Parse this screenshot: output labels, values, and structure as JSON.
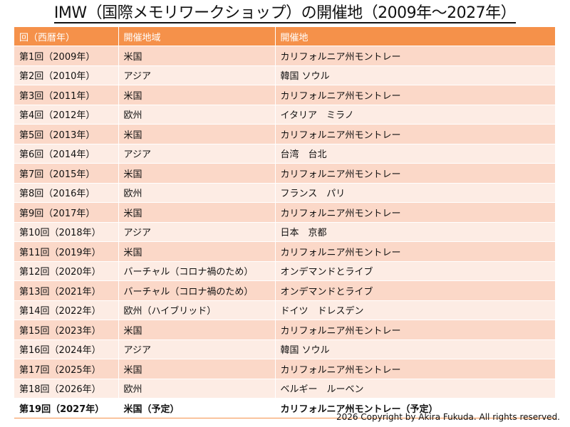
{
  "title": "IMW（国際メモリワークショップ）の開催地（2009年～2027年）",
  "table": {
    "headers": [
      "回（西暦年）",
      "開催地域",
      "開催地"
    ],
    "rows": [
      [
        "第1回（2009年）",
        "米国",
        "カリフォルニア州モントレー"
      ],
      [
        "第2回（2010年）",
        "アジア",
        "韓国 ソウル"
      ],
      [
        "第3回（2011年）",
        "米国",
        "カリフォルニア州モントレー"
      ],
      [
        "第4回（2012年）",
        "欧州",
        "イタリア　ミラノ"
      ],
      [
        "第5回（2013年）",
        "米国",
        "カリフォルニア州モントレー"
      ],
      [
        "第6回（2014年）",
        "アジア",
        "台湾　台北"
      ],
      [
        "第7回（2015年）",
        "米国",
        "カリフォルニア州モントレー"
      ],
      [
        "第8回（2016年）",
        "欧州",
        "フランス　パリ"
      ],
      [
        "第9回（2017年）",
        "米国",
        "カリフォルニア州モントレー"
      ],
      [
        "第10回（2018年）",
        "アジア",
        "日本　京都"
      ],
      [
        "第11回（2019年）",
        "米国",
        "カリフォルニア州モントレー"
      ],
      [
        "第12回（2020年）",
        "バーチャル（コロナ禍のため）",
        "オンデマンドとライブ"
      ],
      [
        "第13回（2021年）",
        "バーチャル（コロナ禍のため）",
        "オンデマンドとライブ"
      ],
      [
        "第14回（2022年）",
        "欧州（ハイブリッド）",
        "ドイツ　ドレスデン"
      ],
      [
        "第15回（2023年）",
        "米国",
        "カリフォルニア州モントレー"
      ],
      [
        "第16回（2024年）",
        "アジア",
        "韓国 ソウル"
      ],
      [
        "第17回（2025年）",
        "米国",
        "カリフォルニア州モントレー"
      ],
      [
        "第18回（2026年）",
        "欧州",
        "ベルギー　ルーベン"
      ],
      [
        "第19回（2027年）",
        "米国（予定）",
        "カリフォルニア州モントレー（予定）"
      ]
    ]
  },
  "copyright": "2026 Copyright by Akira Fukuda. All rights reserved."
}
